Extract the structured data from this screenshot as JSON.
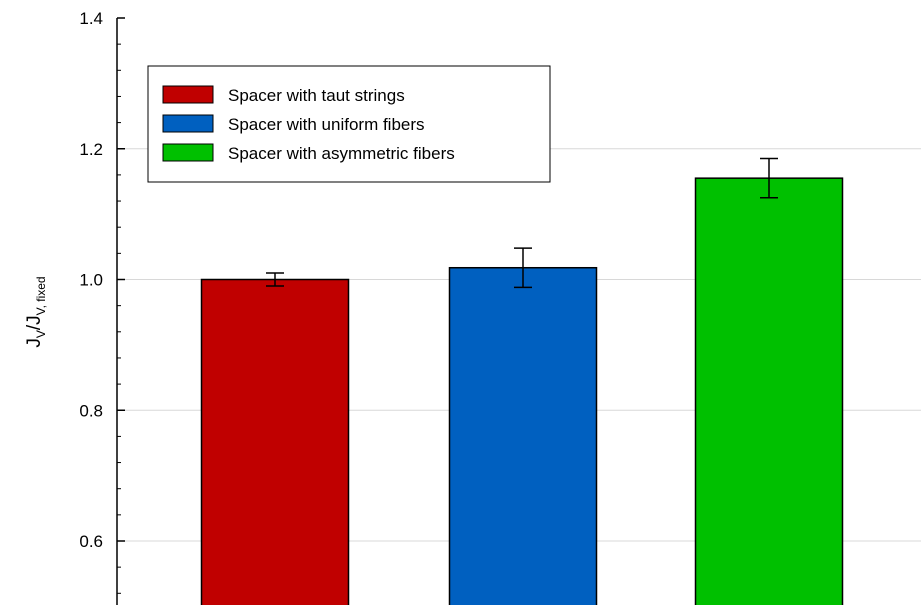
{
  "chart_data": {
    "type": "bar",
    "categories": [
      "Spacer with taut strings",
      "Spacer with uniform fibers",
      "Spacer with asymmetric fibers"
    ],
    "values": [
      1.0,
      1.018,
      1.155
    ],
    "errors": [
      0.01,
      0.03,
      0.03
    ],
    "colors": [
      "#c00000",
      "#0060c0",
      "#00c000"
    ],
    "ylabel": {
      "main": "J",
      "sub1": "V",
      "mid": "/J",
      "sub2": "V, fixed"
    },
    "ylim": [
      0.5,
      1.4
    ],
    "yticks": [
      "0.6",
      "0.8",
      "1.0",
      "1.2",
      "1.4"
    ],
    "ytick_values": [
      0.6,
      0.8,
      1.0,
      1.2,
      1.4
    ],
    "grid": true,
    "legend": {
      "placement": "top-left",
      "entries": [
        "Spacer with taut strings",
        "Spacer with uniform fibers",
        "Spacer with asymmetric fibers"
      ]
    }
  }
}
